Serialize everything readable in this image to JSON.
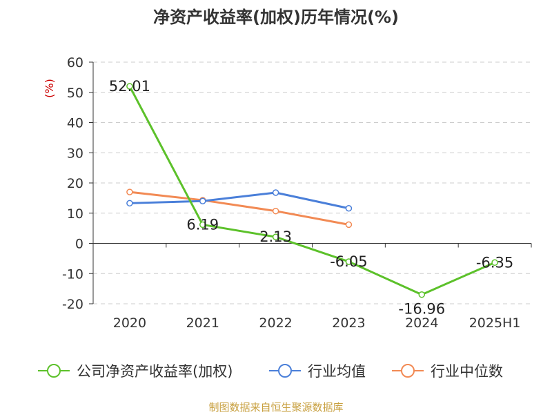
{
  "chart_data": {
    "type": "line",
    "title": "净资产收益率(加权)历年情况(%)",
    "ylabel": "(%)",
    "categories": [
      "2020",
      "2021",
      "2022",
      "2023",
      "2024",
      "2025H1"
    ],
    "ylim": [
      -20,
      60
    ],
    "yticks": [
      60,
      50,
      40,
      30,
      20,
      10,
      0,
      -10,
      -20
    ],
    "grid": true,
    "legend_position": "bottom",
    "series": [
      {
        "name": "公司净资产收益率(加权)",
        "color": "#5cc12a",
        "values": [
          52.01,
          6.19,
          2.13,
          -6.05,
          -16.96,
          -6.35
        ],
        "labels": [
          "52.01",
          "6.19",
          "2.13",
          "-6.05",
          "-16.96",
          "-6.35"
        ]
      },
      {
        "name": "行业均值",
        "color": "#4a7fd9",
        "values": [
          13.3,
          14.0,
          16.8,
          11.6,
          null,
          null
        ]
      },
      {
        "name": "行业中位数",
        "color": "#f28a54",
        "values": [
          17.0,
          14.3,
          10.7,
          6.2,
          null,
          null
        ]
      }
    ]
  },
  "source_note": "制图数据来自恒生聚源数据库",
  "colors": {
    "title": "#333333",
    "axis": "#333333",
    "ylabel": "#cc0000",
    "grid": "#cccccc",
    "source": "#c8a040"
  }
}
